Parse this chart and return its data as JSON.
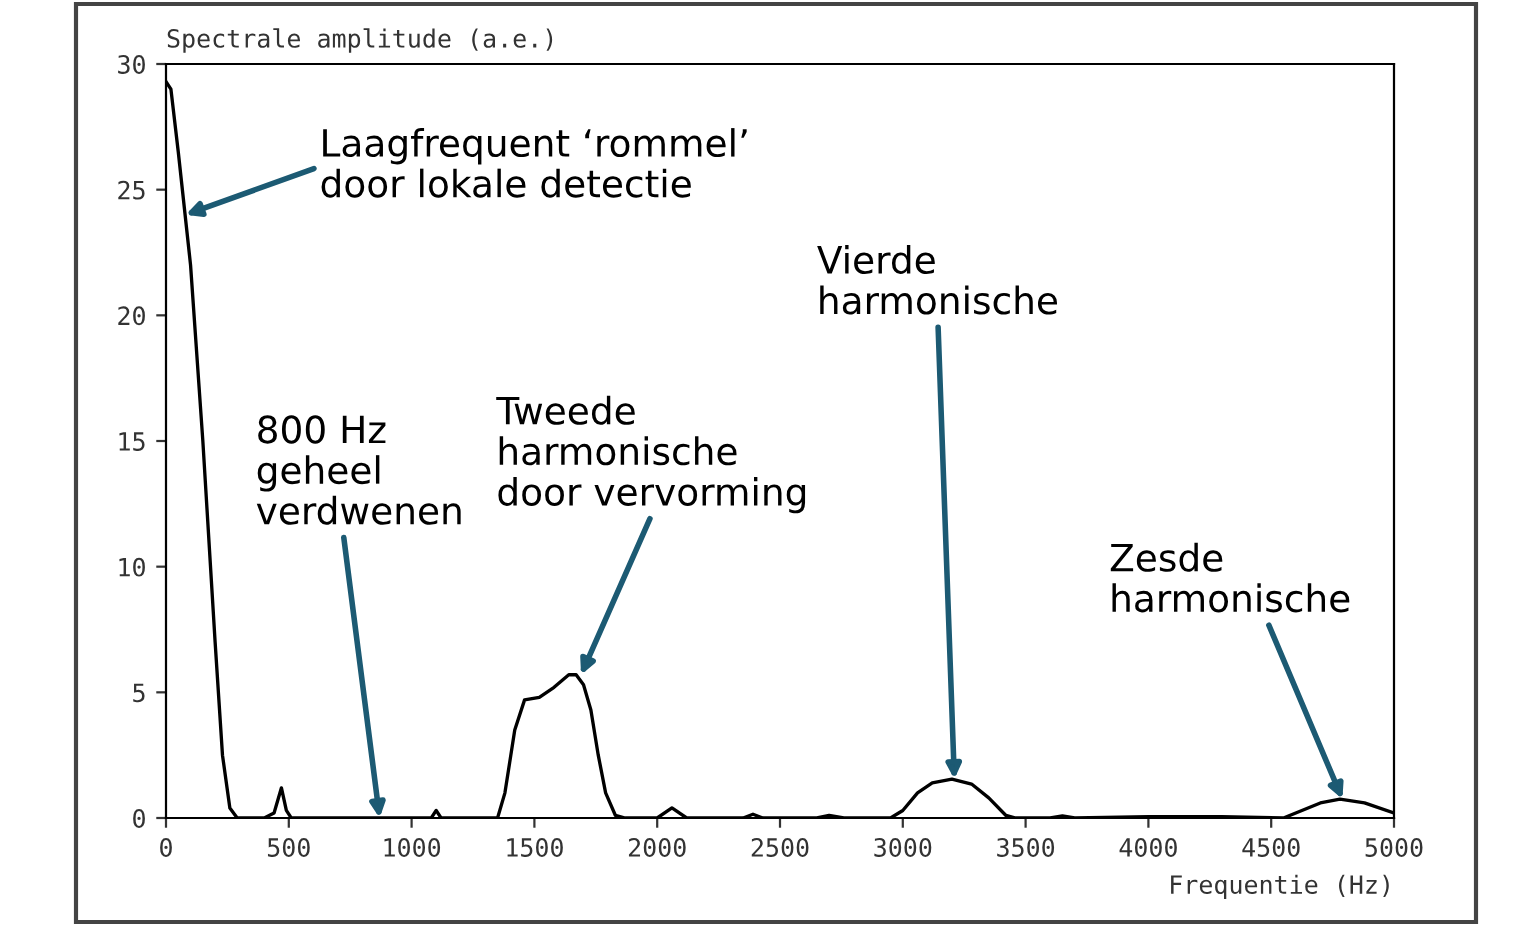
{
  "chart_data": {
    "type": "line",
    "ylabel": "Spectrale amplitude (a.e.)",
    "xlabel": "Frequentie (Hz)",
    "x": [
      0,
      20,
      50,
      100,
      150,
      200,
      230,
      260,
      290,
      400,
      440,
      470,
      490,
      510,
      1080,
      1100,
      1120,
      1350,
      1380,
      1420,
      1460,
      1520,
      1580,
      1640,
      1670,
      1700,
      1730,
      1760,
      1790,
      1830,
      1870,
      2000,
      2060,
      2120,
      2350,
      2390,
      2430,
      2650,
      2700,
      2760,
      2950,
      3000,
      3060,
      3120,
      3200,
      3280,
      3350,
      3420,
      3460,
      3600,
      3650,
      3700,
      4000,
      4300,
      4550,
      4600,
      4700,
      4780,
      4880,
      5000
    ],
    "series": [
      {
        "color": "#000000",
        "values": [
          29.3,
          29.0,
          26.5,
          22,
          15,
          7,
          2.5,
          0.4,
          0,
          0,
          0.2,
          1.2,
          0.3,
          0,
          0,
          0.3,
          0,
          0,
          1,
          3.5,
          4.7,
          4.8,
          5.2,
          5.7,
          5.7,
          5.3,
          4.3,
          2.5,
          1,
          0.1,
          0,
          0,
          0.4,
          0,
          0,
          0.15,
          0,
          0,
          0.1,
          0,
          0,
          0.3,
          1.0,
          1.4,
          1.55,
          1.35,
          0.8,
          0.1,
          0,
          0,
          0.08,
          0,
          0.05,
          0.05,
          0,
          0.2,
          0.6,
          0.75,
          0.6,
          0.2
        ]
      }
    ],
    "xlim": [
      0,
      5000
    ],
    "ylim": [
      0,
      30
    ],
    "xticks": [
      0,
      500,
      1000,
      1500,
      2000,
      2500,
      3000,
      3500,
      4000,
      4500,
      5000
    ],
    "yticks": [
      0,
      5,
      10,
      15,
      20,
      25,
      30
    ],
    "grid": false,
    "legend": false,
    "annotations": [
      {
        "text": "Laagfrequent ‘rommel’\ndoor lokale detectie",
        "x": 80,
        "y": 24
      },
      {
        "text": "800 Hz\ngeheel\nverdwenen",
        "x": 870,
        "y": 0
      },
      {
        "text": "Tweede\nharmonische\ndoor vervorming",
        "x": 1690,
        "y": 5.7
      },
      {
        "text": "Vierde\nharmonische",
        "x": 3210,
        "y": 1.55
      },
      {
        "text": "Zesde\nharmonische",
        "x": 4790,
        "y": 0.75
      }
    ]
  }
}
